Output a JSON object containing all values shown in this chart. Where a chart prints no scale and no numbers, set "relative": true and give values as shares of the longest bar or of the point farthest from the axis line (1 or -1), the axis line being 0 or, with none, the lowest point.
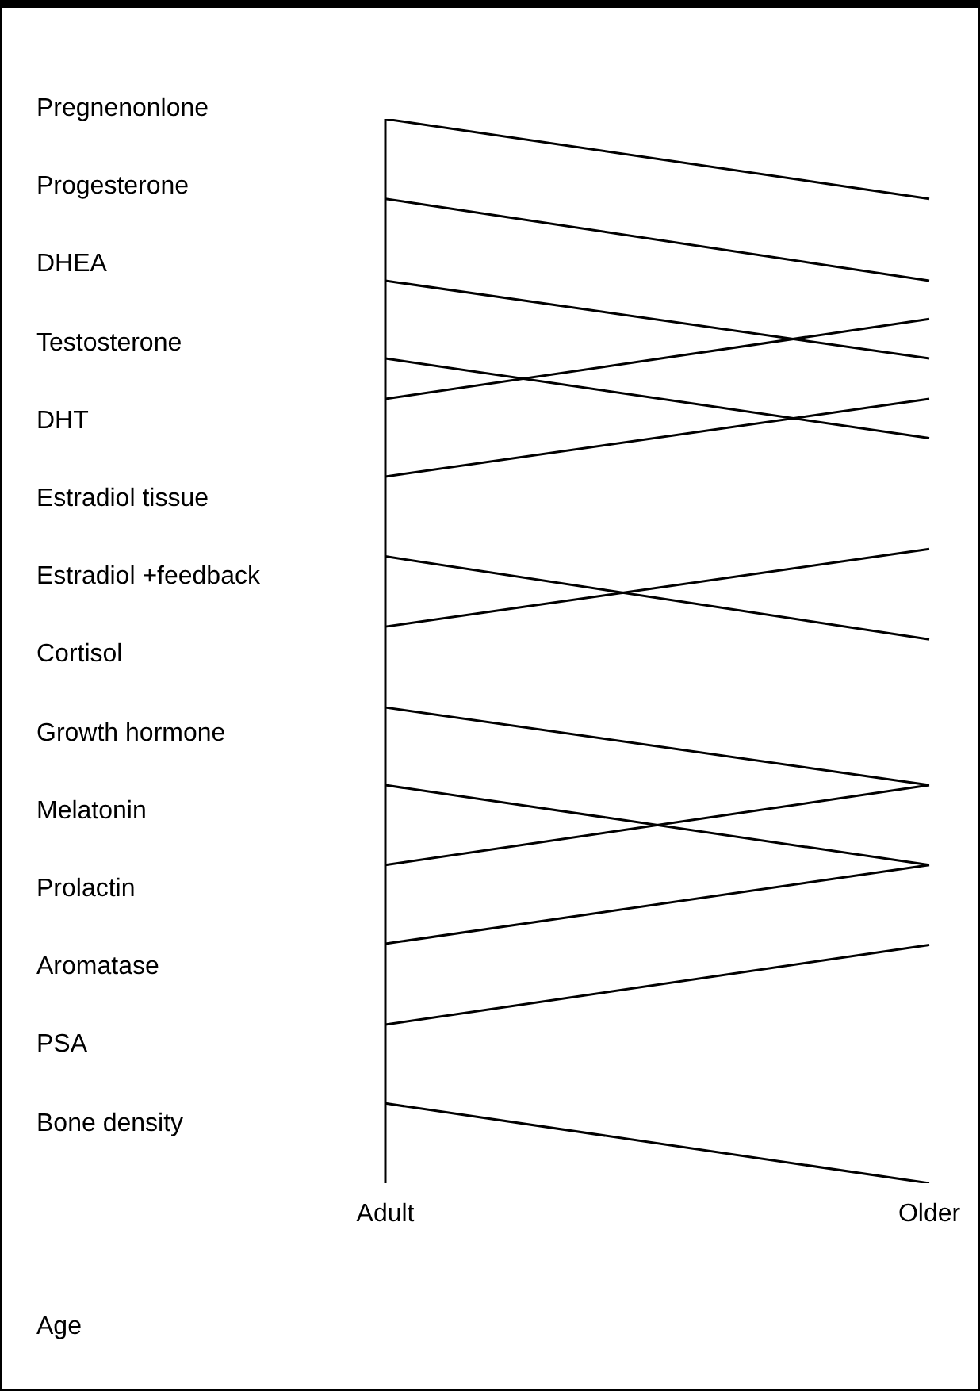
{
  "chart_data": {
    "type": "line",
    "xlabel": "Age",
    "relative": true,
    "marker": "none",
    "line_style": "solid",
    "categories": [
      "Adult",
      "Older"
    ],
    "annotations": [
      "Pregnenonlone",
      "Progesterone",
      "DHEA",
      "Testosterone",
      "DHT",
      "Estradiol tissue",
      "Estradiol +feedback",
      "Cortisol",
      "Growth hormone",
      "Melatonin",
      "Prolactin",
      "Aromatase",
      "PSA",
      "Bone density"
    ],
    "series": [
      {
        "color": "#000000",
        "values": [
          1.0,
          0.925
        ]
      },
      {
        "color": "#000000",
        "values": [
          0.925,
          0.848
        ]
      },
      {
        "color": "#000000",
        "values": [
          0.848,
          0.775
        ]
      },
      {
        "color": "#000000",
        "values": [
          0.775,
          0.7
        ]
      },
      {
        "color": "#000000",
        "values": [
          0.737,
          0.812
        ]
      },
      {
        "color": "#000000",
        "values": [
          0.664,
          0.737
        ]
      },
      {
        "color": "#000000",
        "values": [
          0.589,
          0.511
        ]
      },
      {
        "color": "#000000",
        "values": [
          0.523,
          0.596
        ]
      },
      {
        "color": "#000000",
        "values": [
          0.447,
          0.374
        ]
      },
      {
        "color": "#000000",
        "values": [
          0.374,
          0.299
        ]
      },
      {
        "color": "#000000",
        "values": [
          0.299,
          0.374
        ]
      },
      {
        "color": "#000000",
        "values": [
          0.225,
          0.299
        ]
      },
      {
        "color": "#000000",
        "values": [
          0.149,
          0.224
        ]
      },
      {
        "color": "#000000",
        "values": [
          0.075,
          0
        ]
      }
    ]
  }
}
